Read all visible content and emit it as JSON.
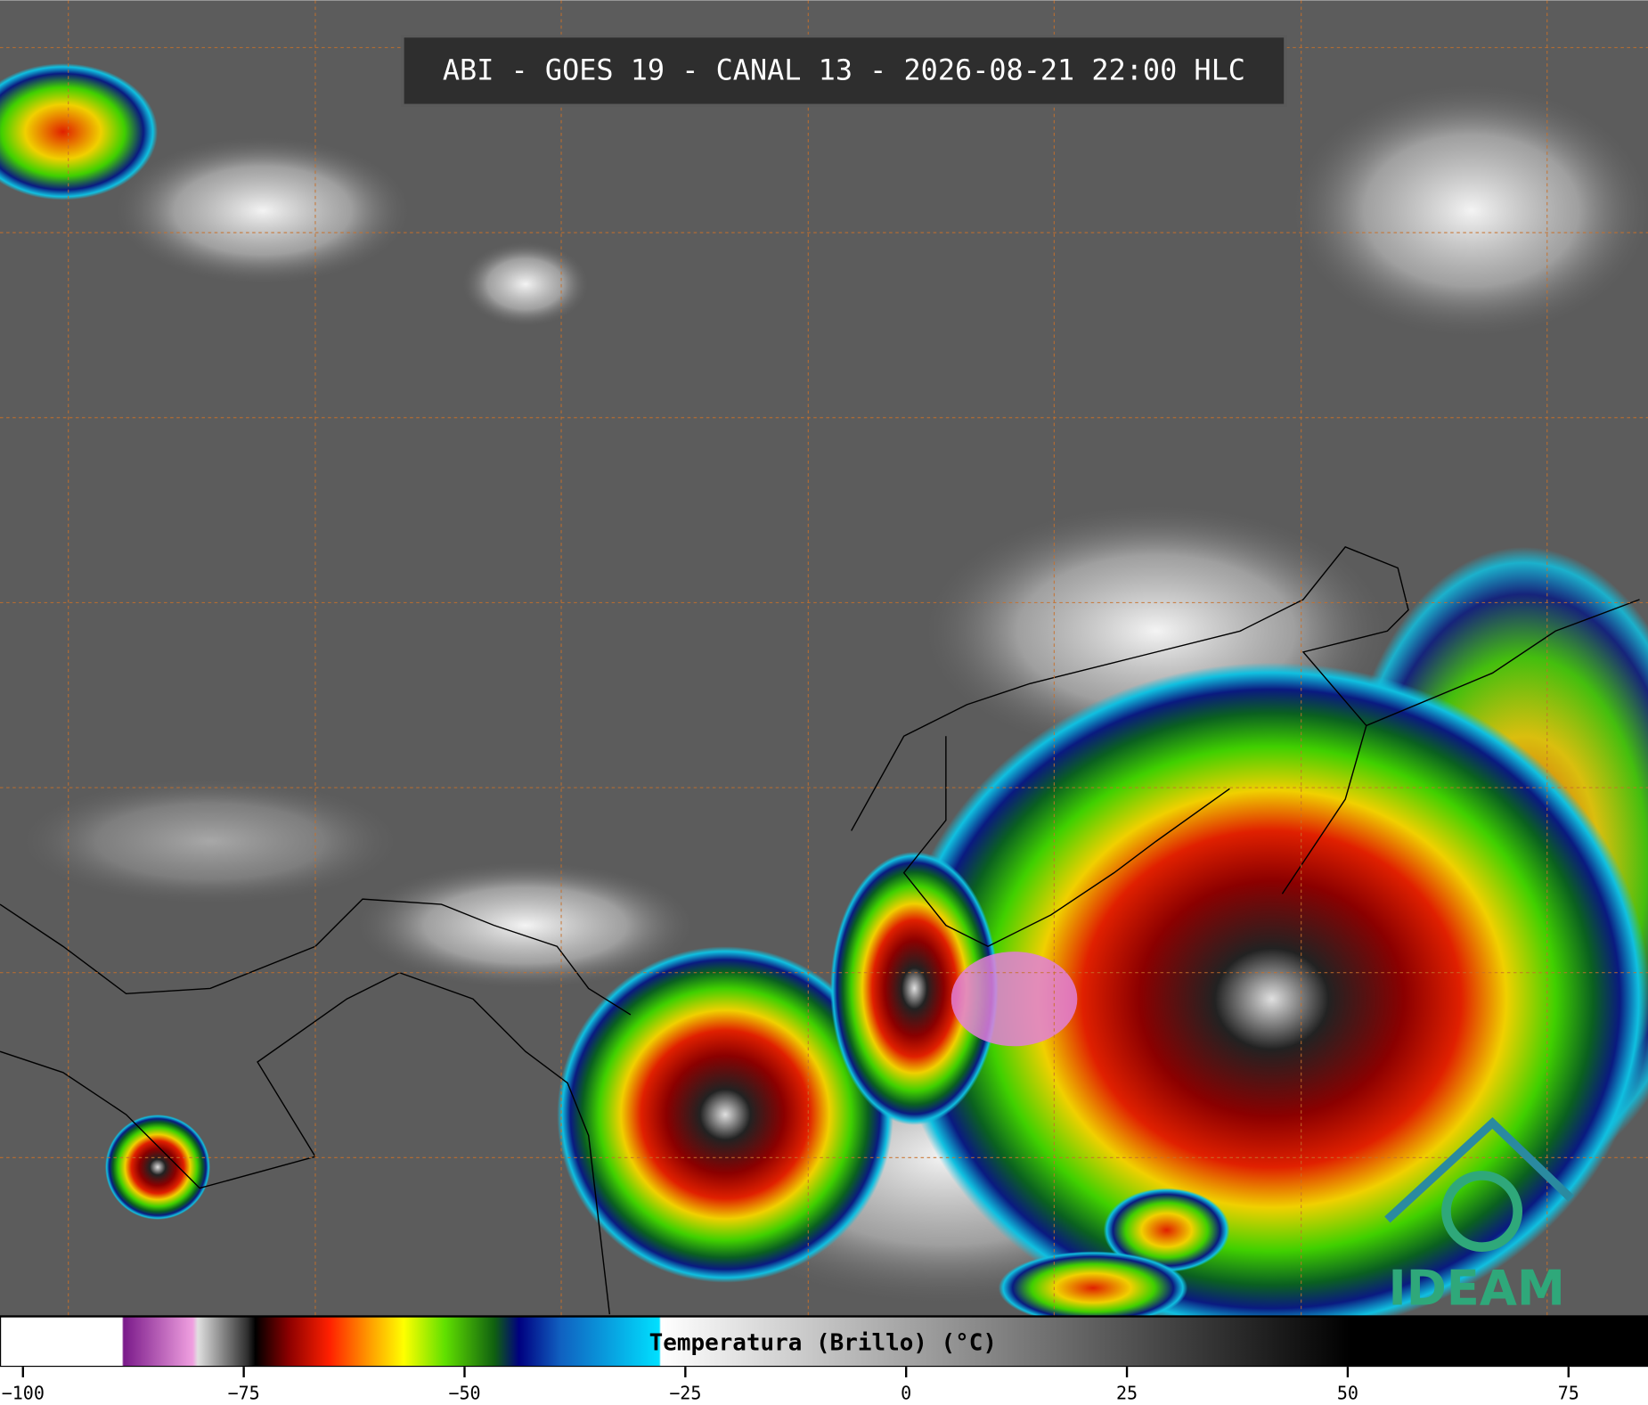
{
  "header": {
    "title": "ABI - GOES 19 - CANAL 13 - 2026-08-21 22:00 HLC"
  },
  "colorbar": {
    "label": "Temperatura (Brillo) (°C)",
    "xlim": [
      -102.6,
      84
    ],
    "xticks": [
      {
        "value": -100,
        "label": "−100"
      },
      {
        "value": -75,
        "label": "−75"
      },
      {
        "value": -50,
        "label": "−50"
      },
      {
        "value": -25,
        "label": "−25"
      },
      0,
      25,
      50,
      75
    ]
  },
  "logo": {
    "text": "IDEAM"
  }
}
